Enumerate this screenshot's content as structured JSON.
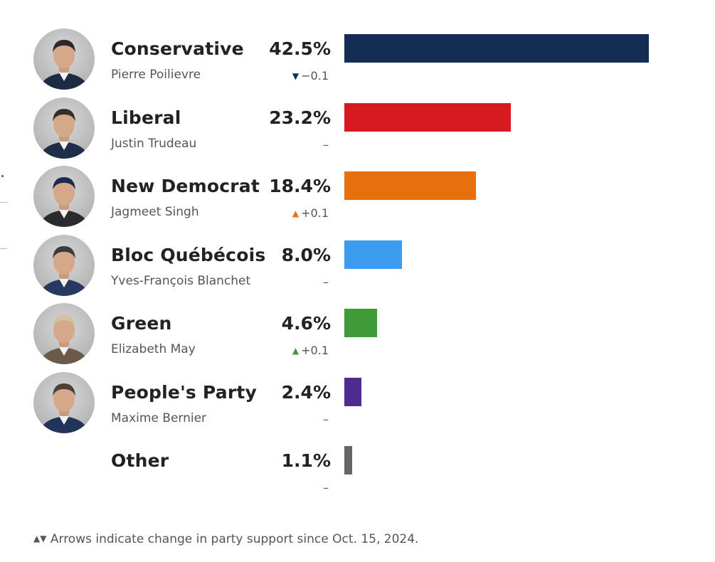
{
  "chart_data": {
    "type": "bar",
    "orientation": "horizontal",
    "xlim": [
      0,
      42.5
    ],
    "grid": false,
    "rows": [
      {
        "party": "Conservative",
        "leader": "Pierre Poilievre",
        "value": 42.5,
        "value_label": "42.5%",
        "change": "−0.1",
        "direction": "down",
        "color": "#142d54",
        "icon": "leader-photo"
      },
      {
        "party": "Liberal",
        "leader": "Justin Trudeau",
        "value": 23.2,
        "value_label": "23.2%",
        "change": "–",
        "direction": "none",
        "color": "#d71920",
        "icon": "leader-photo"
      },
      {
        "party": "New Democrat",
        "leader": "Jagmeet Singh",
        "value": 18.4,
        "value_label": "18.4%",
        "change": "+0.1",
        "direction": "up",
        "color": "#e8700c",
        "icon": "leader-photo"
      },
      {
        "party": "Bloc Québécois",
        "leader": "Yves-François Blanchet",
        "value": 8.0,
        "value_label": "8.0%",
        "change": "–",
        "direction": "none",
        "color": "#3a9bef",
        "icon": "leader-photo"
      },
      {
        "party": "Green",
        "leader": "Elizabeth May",
        "value": 4.6,
        "value_label": "4.6%",
        "change": "+0.1",
        "direction": "up",
        "color": "#3e9b37",
        "icon": "leader-photo"
      },
      {
        "party": "People's Party",
        "leader": "Maxime Bernier",
        "value": 2.4,
        "value_label": "2.4%",
        "change": "–",
        "direction": "none",
        "color": "#4f2b8f",
        "icon": "leader-photo"
      },
      {
        "party": "Other",
        "leader": "",
        "value": 1.1,
        "value_label": "1.1%",
        "change": "–",
        "direction": "none",
        "color": "#666666",
        "icon": ""
      }
    ],
    "footnote": "Arrows indicate change in party support since Oct. 15, 2024.",
    "arrow_colors": {
      "down": "#142d54",
      "up_ndp": "#e8700c",
      "up_green": "#3e9b37",
      "legend": "#555555"
    }
  }
}
